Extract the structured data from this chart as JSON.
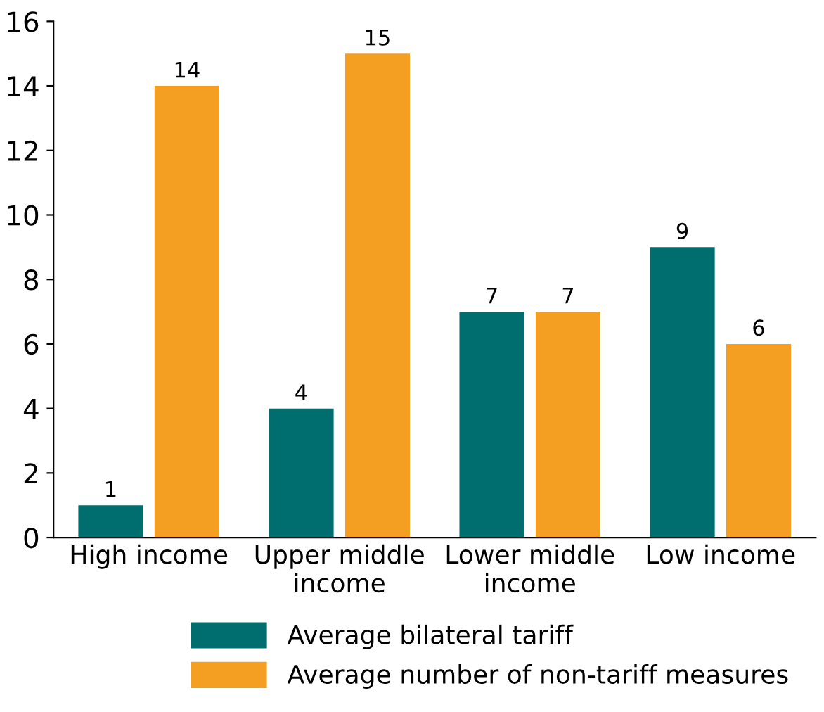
{
  "chart_data": {
    "type": "bar",
    "categories": [
      "High income",
      "Upper middle\nincome",
      "Lower middle\nincome",
      "Low income"
    ],
    "series": [
      {
        "name": "Average bilateral tariff",
        "color": "#006e6e",
        "values": [
          1,
          4,
          7,
          9
        ]
      },
      {
        "name": "Average number of non-tariff measures",
        "color": "#f59f22",
        "values": [
          14,
          15,
          7,
          6
        ]
      }
    ],
    "ylim": [
      0,
      16
    ],
    "yticks": [
      0,
      2,
      4,
      6,
      8,
      10,
      12,
      14,
      16
    ],
    "grid": false,
    "legend": "bottom",
    "data_labels": true
  }
}
